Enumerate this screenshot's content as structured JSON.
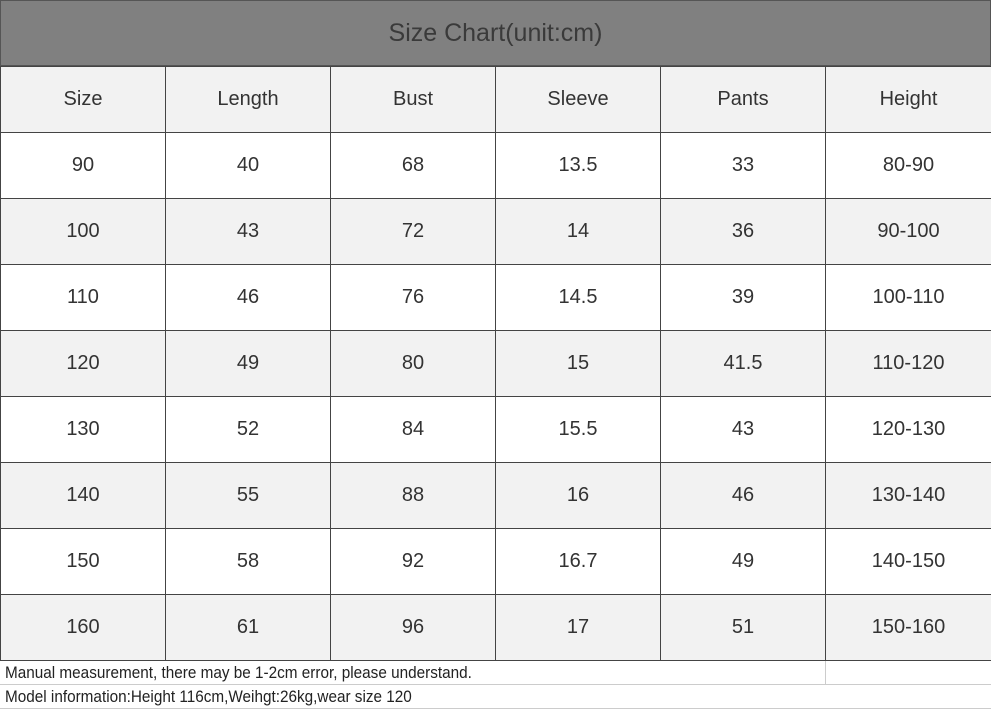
{
  "title": "Size Chart(unit:cm)",
  "columns": [
    "Size",
    "Length",
    "Bust",
    "Sleeve",
    "Pants",
    "Height"
  ],
  "rows": [
    [
      "90",
      "40",
      "68",
      "13.5",
      "33",
      "80-90"
    ],
    [
      "100",
      "43",
      "72",
      "14",
      "36",
      "90-100"
    ],
    [
      "110",
      "46",
      "76",
      "14.5",
      "39",
      "100-110"
    ],
    [
      "120",
      "49",
      "80",
      "15",
      "41.5",
      "110-120"
    ],
    [
      "130",
      "52",
      "84",
      "15.5",
      "43",
      "120-130"
    ],
    [
      "140",
      "55",
      "88",
      "16",
      "46",
      "130-140"
    ],
    [
      "150",
      "58",
      "92",
      "16.7",
      "49",
      "140-150"
    ],
    [
      "160",
      "61",
      "96",
      "17",
      "51",
      "150-160"
    ]
  ],
  "notes": [
    "Manual measurement, there may be 1-2cm error, please understand.",
    "Model information:Height 116cm,Weihgt:26kg,wear size 120"
  ],
  "colors": {
    "title_bg": "#808080",
    "alt_row": "#f2f2f2"
  }
}
